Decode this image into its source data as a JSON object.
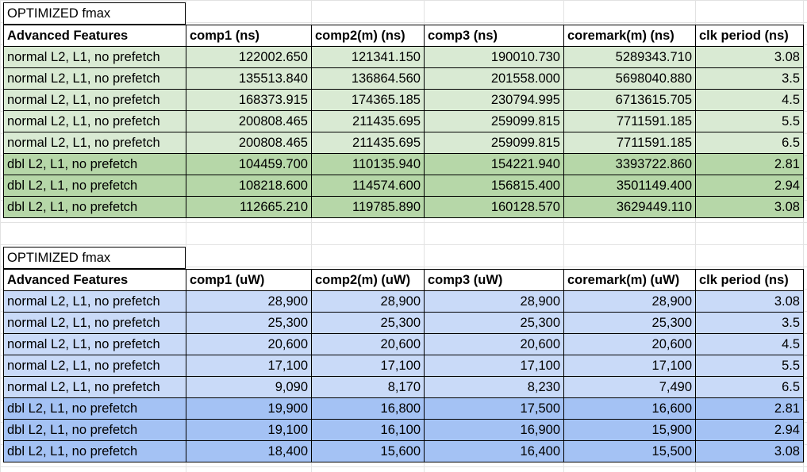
{
  "table_top": {
    "title": "OPTIMIZED fmax",
    "headers": [
      "Advanced Features",
      "comp1 (ns)",
      "comp2(m) (ns)",
      "comp3 (ns)",
      "coremark(m) (ns)",
      "clk period (ns)"
    ],
    "rows": [
      [
        "normal L2, L1, no prefetch",
        "122002.650",
        "121341.150",
        "190010.730",
        "5289343.710",
        "3.08"
      ],
      [
        "normal L2, L1, no prefetch",
        "135513.840",
        "136864.560",
        "201558.000",
        "5698040.880",
        "3.5"
      ],
      [
        "normal L2, L1, no prefetch",
        "168373.915",
        "174365.185",
        "230794.995",
        "6713615.705",
        "4.5"
      ],
      [
        "normal L2, L1, no prefetch",
        "200808.465",
        "211435.695",
        "259099.815",
        "7711591.185",
        "5.5"
      ],
      [
        "normal L2, L1, no prefetch",
        "200808.465",
        "211435.695",
        "259099.815",
        "7711591.185",
        "6.5"
      ],
      [
        "dbl L2, L1, no prefetch",
        "104459.700",
        "110135.940",
        "154221.940",
        "3393722.860",
        "2.81"
      ],
      [
        "dbl L2, L1, no prefetch",
        "108218.600",
        "114574.600",
        "156815.400",
        "3501149.400",
        "2.94"
      ],
      [
        "dbl L2, L1, no prefetch",
        "112665.210",
        "119785.890",
        "160128.570",
        "3629449.110",
        "3.08"
      ]
    ],
    "row_colors": [
      "#d9ead3",
      "#b6d7a8"
    ]
  },
  "table_bottom": {
    "title": "OPTIMIZED fmax",
    "headers": [
      "Advanced Features",
      "comp1 (uW)",
      "comp2(m) (uW)",
      "comp3 (uW)",
      "coremark(m) (uW)",
      "clk period (ns)"
    ],
    "rows": [
      [
        "normal L2, L1, no prefetch",
        "28,900",
        "28,900",
        "28,900",
        "28,900",
        "3.08"
      ],
      [
        "normal L2, L1, no prefetch",
        "25,300",
        "25,300",
        "25,300",
        "25,300",
        "3.5"
      ],
      [
        "normal L2, L1, no prefetch",
        "20,600",
        "20,600",
        "20,600",
        "20,600",
        "4.5"
      ],
      [
        "normal L2, L1, no prefetch",
        "17,100",
        "17,100",
        "17,100",
        "17,100",
        "5.5"
      ],
      [
        "normal L2, L1, no prefetch",
        "9,090",
        "8,170",
        "8,230",
        "7,490",
        "6.5"
      ],
      [
        "dbl L2, L1, no prefetch",
        "19,900",
        "16,800",
        "17,500",
        "16,600",
        "2.81"
      ],
      [
        "dbl L2, L1, no prefetch",
        "19,100",
        "16,100",
        "16,900",
        "15,900",
        "2.94"
      ],
      [
        "dbl L2, L1, no prefetch",
        "18,400",
        "15,600",
        "16,400",
        "15,500",
        "3.08"
      ]
    ],
    "row_colors": [
      "#c9daf8",
      "#a4c2f4"
    ]
  }
}
